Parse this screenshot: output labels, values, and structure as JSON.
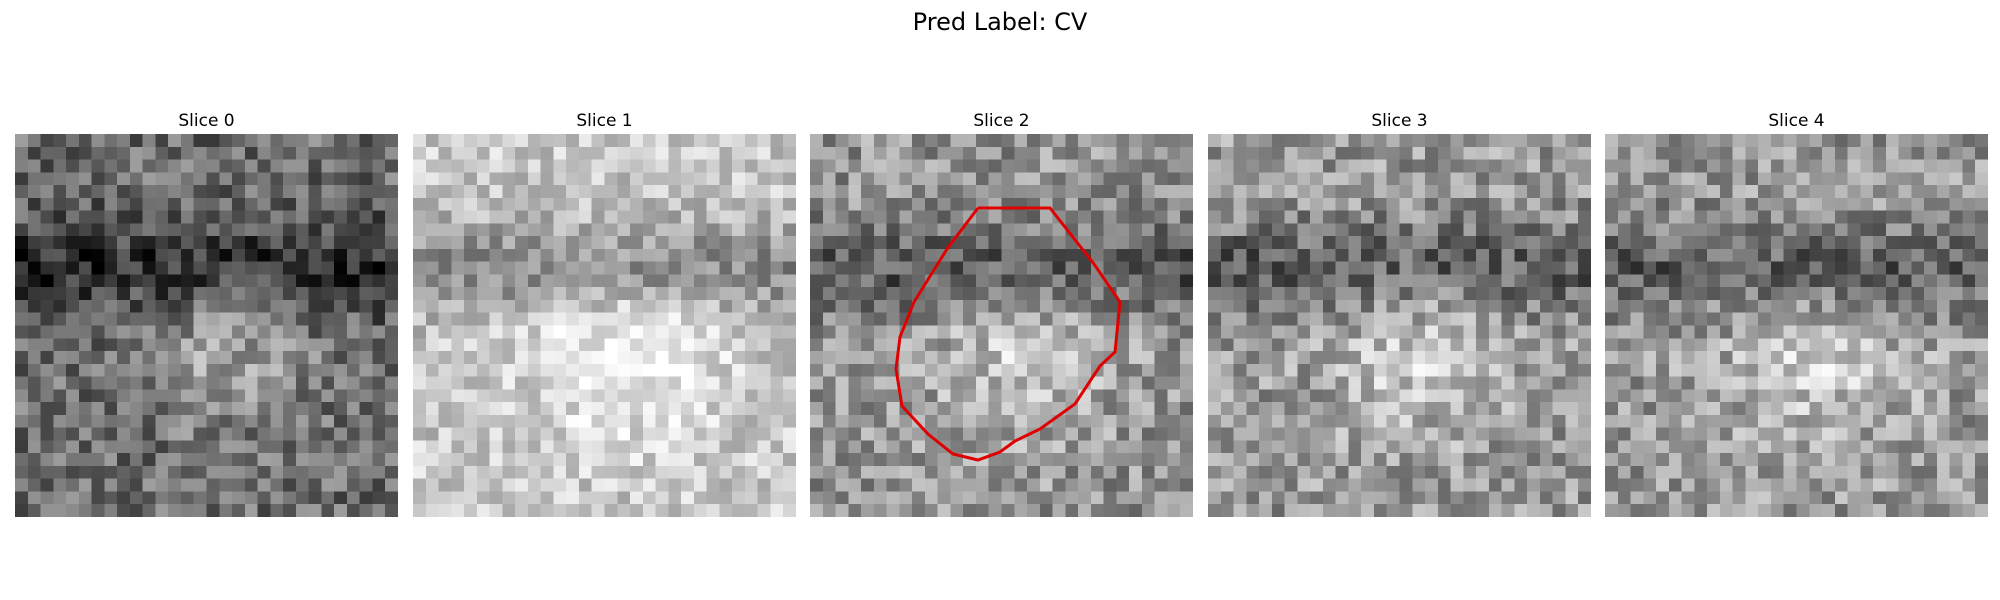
{
  "suptitle": "Pred Label: CV",
  "slices": [
    {
      "title": "Slice 0",
      "seed": 11,
      "base": 0.42,
      "contrast": 0.9
    },
    {
      "title": "Slice 1",
      "seed": 23,
      "base": 0.78,
      "contrast": 0.7
    },
    {
      "title": "Slice 2",
      "seed": 37,
      "base": 0.58,
      "contrast": 0.9,
      "contour": true
    },
    {
      "title": "Slice 3",
      "seed": 51,
      "base": 0.6,
      "contrast": 0.9
    },
    {
      "title": "Slice 4",
      "seed": 67,
      "base": 0.6,
      "contrast": 0.9
    }
  ],
  "colormap": "gray",
  "contour_color": "#e00000"
}
